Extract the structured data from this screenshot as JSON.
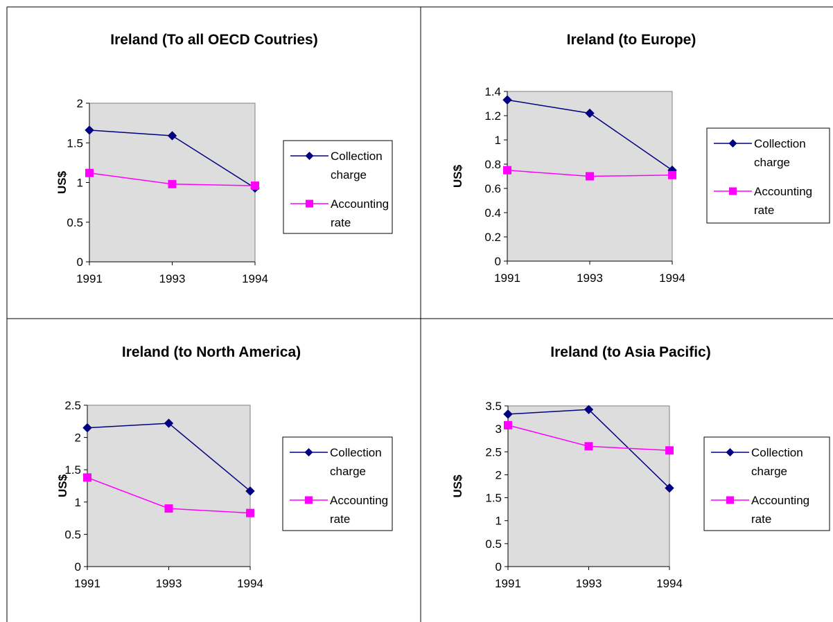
{
  "chart_data": [
    {
      "type": "line",
      "title": "Ireland (To all OECD Coutries)",
      "ylabel": "US$",
      "xlabel": "",
      "categories": [
        "1991",
        "1993",
        "1994"
      ],
      "ylim": [
        0,
        2
      ],
      "yticks": [
        "0",
        "0.5",
        "1",
        "1.5",
        "2"
      ],
      "grid": false,
      "legend_position": "right",
      "series": [
        {
          "name": [
            "Collection",
            "charge"
          ],
          "values": [
            1.66,
            1.59,
            0.93
          ],
          "color": "#000080",
          "marker": "diamond"
        },
        {
          "name": [
            "Accounting",
            "rate"
          ],
          "values": [
            1.12,
            0.98,
            0.96
          ],
          "color": "#ff00ff",
          "marker": "square"
        }
      ]
    },
    {
      "type": "line",
      "title": "Ireland (to Europe)",
      "ylabel": "US$",
      "xlabel": "",
      "categories": [
        "1991",
        "1993",
        "1994"
      ],
      "ylim": [
        0,
        1.4
      ],
      "yticks": [
        "0",
        "0.2",
        "0.4",
        "0.6",
        "0.8",
        "1",
        "1.2",
        "1.4"
      ],
      "grid": false,
      "legend_position": "right",
      "series": [
        {
          "name": [
            "Collection",
            "charge"
          ],
          "values": [
            1.33,
            1.22,
            0.75
          ],
          "color": "#000080",
          "marker": "diamond"
        },
        {
          "name": [
            "Accounting",
            "rate"
          ],
          "values": [
            0.75,
            0.7,
            0.71
          ],
          "color": "#ff00ff",
          "marker": "square"
        }
      ]
    },
    {
      "type": "line",
      "title": "Ireland (to North America)",
      "ylabel": "US$",
      "xlabel": "",
      "categories": [
        "1991",
        "1993",
        "1994"
      ],
      "ylim": [
        0,
        2.5
      ],
      "yticks": [
        "0",
        "0.5",
        "1",
        "1.5",
        "2",
        "2.5"
      ],
      "grid": false,
      "legend_position": "right",
      "series": [
        {
          "name": [
            "Collection",
            "charge"
          ],
          "values": [
            2.15,
            2.22,
            1.17
          ],
          "color": "#000080",
          "marker": "diamond"
        },
        {
          "name": [
            "Accounting",
            "rate"
          ],
          "values": [
            1.38,
            0.9,
            0.83
          ],
          "color": "#ff00ff",
          "marker": "square"
        }
      ]
    },
    {
      "type": "line",
      "title": "Ireland (to Asia Pacific)",
      "ylabel": "US$",
      "xlabel": "",
      "categories": [
        "1991",
        "1993",
        "1994"
      ],
      "ylim": [
        0,
        3.5
      ],
      "yticks": [
        "0",
        "0.5",
        "1",
        "1.5",
        "2",
        "2.5",
        "3",
        "3.5"
      ],
      "grid": false,
      "legend_position": "right",
      "series": [
        {
          "name": [
            "Collection",
            "charge"
          ],
          "values": [
            3.32,
            3.42,
            1.71
          ],
          "color": "#000080",
          "marker": "diamond"
        },
        {
          "name": [
            "Accounting",
            "rate"
          ],
          "values": [
            3.08,
            2.62,
            2.53
          ],
          "color": "#ff00ff",
          "marker": "square"
        }
      ]
    }
  ],
  "colors": {
    "plot_background": "#dddddd",
    "axis": "#000000",
    "divider": "#000000"
  }
}
